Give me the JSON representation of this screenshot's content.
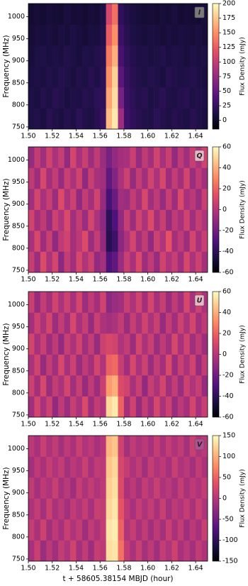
{
  "chart_data": [
    {
      "type": "heatmap",
      "label": "I",
      "colorbar_label": "Flux Density (mJy)",
      "ylabel": "Frequency (MHz)",
      "colormap": "magma",
      "label_box": "#7a7a7a",
      "xlim": [
        1.5,
        1.65
      ],
      "ylim": [
        745,
        1030
      ],
      "clim": [
        -15,
        200
      ],
      "xticks": [
        {
          "value": 1.5,
          "label": "1.50"
        },
        1.52,
        1.54,
        1.56,
        1.58,
        {
          "value": 1.6,
          "label": "1.60"
        },
        1.62,
        1.64
      ],
      "yticks": [
        750,
        800,
        850,
        900,
        950,
        1000
      ],
      "cticks": [
        0,
        25,
        50,
        75,
        100,
        125,
        150,
        175,
        200
      ],
      "x": [
        1.5025,
        1.5075,
        1.5125,
        1.5175,
        1.5225,
        1.5275,
        1.5325,
        1.5375,
        1.5425,
        1.5475,
        1.5525,
        1.5575,
        1.5625,
        1.5675,
        1.5725,
        1.5775,
        1.5825,
        1.5875,
        1.5925,
        1.5975,
        1.6025,
        1.6075,
        1.6125,
        1.6175,
        1.6225,
        1.6275,
        1.6325,
        1.6375,
        1.6425,
        1.6475
      ],
      "y": [
        768.75,
        816.25,
        863.75,
        911.25,
        958.75,
        1006.25
      ],
      "z": [
        [
          12,
          15,
          10,
          18,
          14,
          11,
          16,
          13,
          20,
          15,
          12,
          18,
          25,
          170,
          190,
          80,
          30,
          22,
          18,
          15,
          14,
          20,
          16,
          13,
          17,
          15,
          12,
          18,
          14,
          11
        ],
        [
          14,
          10,
          16,
          12,
          18,
          15,
          11,
          14,
          13,
          17,
          15,
          20,
          22,
          160,
          185,
          60,
          28,
          20,
          16,
          18,
          12,
          15,
          19,
          14,
          13,
          16,
          18,
          12,
          15,
          13
        ],
        [
          10,
          13,
          11,
          15,
          12,
          16,
          14,
          10,
          15,
          12,
          18,
          14,
          20,
          150,
          180,
          45,
          25,
          18,
          15,
          12,
          16,
          14,
          11,
          17,
          15,
          12,
          14,
          16,
          13,
          10
        ],
        [
          8,
          12,
          14,
          10,
          13,
          11,
          15,
          12,
          9,
          14,
          12,
          16,
          18,
          140,
          165,
          35,
          22,
          16,
          13,
          14,
          11,
          12,
          15,
          10,
          14,
          12,
          9,
          13,
          11,
          12
        ],
        [
          6,
          9,
          8,
          11,
          7,
          10,
          8,
          12,
          9,
          7,
          11,
          9,
          15,
          125,
          150,
          28,
          18,
          12,
          10,
          8,
          11,
          9,
          7,
          10,
          8,
          11,
          9,
          8,
          10,
          7
        ],
        [
          4,
          7,
          5,
          8,
          6,
          5,
          9,
          6,
          7,
          5,
          8,
          6,
          12,
          110,
          135,
          22,
          15,
          10,
          8,
          6,
          7,
          5,
          8,
          6,
          9,
          5,
          7,
          6,
          5,
          8
        ]
      ]
    },
    {
      "type": "heatmap",
      "label": "Q",
      "colorbar_label": "Flux Density (mJy)",
      "ylabel": "Frequency (MHz)",
      "colormap": "magma",
      "label_box": "#e8b8c8",
      "xlim": [
        1.5,
        1.65
      ],
      "ylim": [
        745,
        1030
      ],
      "clim": [
        -60,
        60
      ],
      "xticks": [
        {
          "value": 1.5,
          "label": "1.50"
        },
        1.52,
        1.54,
        1.56,
        1.58,
        {
          "value": 1.6,
          "label": "1.60"
        },
        1.62,
        1.64
      ],
      "yticks": [
        750,
        800,
        850,
        900,
        950,
        1000
      ],
      "cticks": [
        -60,
        -40,
        -20,
        0,
        20,
        40,
        60
      ],
      "x": [
        1.5025,
        1.5075,
        1.5125,
        1.5175,
        1.5225,
        1.5275,
        1.5325,
        1.5375,
        1.5425,
        1.5475,
        1.5525,
        1.5575,
        1.5625,
        1.5675,
        1.5725,
        1.5775,
        1.5825,
        1.5875,
        1.5925,
        1.5975,
        1.6025,
        1.6075,
        1.6125,
        1.6175,
        1.6225,
        1.6275,
        1.6325,
        1.6375,
        1.6425,
        1.6475
      ],
      "y": [
        768.75,
        816.25,
        863.75,
        911.25,
        958.75,
        1006.25
      ],
      "z": [
        [
          5,
          -8,
          12,
          -3,
          9,
          -12,
          4,
          -6,
          10,
          -2,
          7,
          -10,
          -5,
          -30,
          -25,
          -8,
          6,
          -4,
          11,
          -7,
          3,
          -9,
          8,
          -2,
          5,
          -6,
          10,
          -3,
          7,
          -5
        ],
        [
          -4,
          10,
          -7,
          6,
          -11,
          3,
          8,
          -5,
          2,
          12,
          -8,
          4,
          -10,
          -42,
          -35,
          -12,
          -3,
          9,
          -6,
          4,
          -10,
          7,
          -2,
          15,
          -5,
          3,
          -7,
          9,
          -4,
          6
        ],
        [
          8,
          -5,
          3,
          -9,
          7,
          -2,
          11,
          -6,
          4,
          -8,
          9,
          -3,
          -12,
          -40,
          -30,
          -10,
          5,
          -7,
          8,
          -3,
          12,
          -5,
          6,
          -9,
          3,
          -4,
          8,
          -6,
          5,
          -2
        ],
        [
          -6,
          9,
          -4,
          5,
          -8,
          12,
          -3,
          7,
          -10,
          4,
          -5,
          8,
          -9,
          -32,
          -22,
          -6,
          -8,
          4,
          -5,
          10,
          -6,
          3,
          -9,
          5,
          -7,
          11,
          -4,
          2,
          -8,
          6
        ],
        [
          3,
          -7,
          10,
          -5,
          4,
          -9,
          6,
          -3,
          8,
          -11,
          5,
          -4,
          -6,
          -25,
          -15,
          -3,
          7,
          -9,
          4,
          -6,
          8,
          -3,
          10,
          -7,
          4,
          -5,
          9,
          -8,
          3,
          -6
        ],
        [
          -9,
          4,
          -6,
          8,
          -3,
          5,
          -10,
          9,
          -4,
          6,
          -7,
          3,
          -8,
          -18,
          -10,
          -5,
          -4,
          6,
          -9,
          3,
          -5,
          8,
          -4,
          6,
          -10,
          3,
          -6,
          5,
          -3,
          8
        ]
      ]
    },
    {
      "type": "heatmap",
      "label": "U",
      "colorbar_label": "Flux Density (mJy)",
      "ylabel": "Frequency (MHz)",
      "colormap": "magma",
      "label_box": "#e8b8c8",
      "xlim": [
        1.5,
        1.65
      ],
      "ylim": [
        745,
        1030
      ],
      "clim": [
        -60,
        60
      ],
      "xticks": [
        {
          "value": 1.5,
          "label": "1.50"
        },
        1.52,
        1.54,
        1.56,
        1.58,
        {
          "value": 1.6,
          "label": "1.60"
        },
        1.62,
        1.64
      ],
      "yticks": [
        750,
        800,
        850,
        900,
        950,
        1000
      ],
      "cticks": [
        -60,
        -40,
        -20,
        0,
        20,
        40,
        60
      ],
      "x": [
        1.5025,
        1.5075,
        1.5125,
        1.5175,
        1.5225,
        1.5275,
        1.5325,
        1.5375,
        1.5425,
        1.5475,
        1.5525,
        1.5575,
        1.5625,
        1.5675,
        1.5725,
        1.5775,
        1.5825,
        1.5875,
        1.5925,
        1.5975,
        1.6025,
        1.6075,
        1.6125,
        1.6175,
        1.6225,
        1.6275,
        1.6325,
        1.6375,
        1.6425,
        1.6475
      ],
      "y": [
        768.75,
        816.25,
        863.75,
        911.25,
        958.75,
        1006.25
      ],
      "z": [
        [
          -6,
          9,
          -4,
          7,
          -10,
          3,
          -8,
          5,
          -3,
          11,
          -7,
          4,
          -2,
          50,
          55,
          20,
          -5,
          8,
          -9,
          4,
          -6,
          10,
          -3,
          7,
          -8,
          2,
          -5,
          9,
          -4,
          6
        ],
        [
          7,
          -5,
          10,
          -8,
          4,
          -3,
          9,
          -6,
          5,
          -9,
          3,
          -7,
          6,
          35,
          40,
          12,
          8,
          -4,
          6,
          -10,
          5,
          -3,
          9,
          -6,
          4,
          -8,
          7,
          -2,
          5,
          -9
        ],
        [
          -3,
          8,
          -9,
          4,
          -6,
          10,
          -4,
          7,
          -8,
          3,
          -5,
          9,
          -2,
          20,
          22,
          5,
          -6,
          10,
          -3,
          7,
          -8,
          4,
          -5,
          11,
          -7,
          6,
          -3,
          8,
          -9,
          4
        ],
        [
          9,
          -4,
          6,
          -7,
          3,
          -10,
          5,
          -3,
          8,
          -6,
          4,
          -9,
          7,
          10,
          8,
          -2,
          4,
          -7,
          9,
          -3,
          6,
          -8,
          3,
          -5,
          10,
          -4,
          8,
          -6,
          3,
          -7
        ],
        [
          -5,
          7,
          -3,
          9,
          -8,
          4,
          -6,
          10,
          -4,
          5,
          -9,
          6,
          -3,
          -5,
          -3,
          4,
          -8,
          5,
          -4,
          8,
          -3,
          6,
          -9,
          4,
          -6,
          7,
          -3,
          9,
          -5,
          3
        ],
        [
          6,
          -9,
          4,
          -5,
          8,
          -3,
          7,
          -4,
          9,
          -7,
          3,
          -5,
          8,
          -12,
          -8,
          -6,
          6,
          -3,
          8,
          -5,
          9,
          -4,
          5,
          -8,
          3,
          -6,
          10,
          -4,
          7,
          -3
        ]
      ]
    },
    {
      "type": "heatmap",
      "label": "V",
      "colorbar_label": "Flux Density (mJy)",
      "ylabel": "Frequency (MHz)",
      "xlabel": "t + 58605.38154 MBJD (hour)",
      "colormap": "magma",
      "label_box": "#b05090",
      "xlim": [
        1.5,
        1.65
      ],
      "ylim": [
        745,
        1030
      ],
      "clim": [
        -150,
        150
      ],
      "xticks": [
        {
          "value": 1.5,
          "label": "1.50"
        },
        1.52,
        1.54,
        1.56,
        1.58,
        {
          "value": 1.6,
          "label": "1.60"
        },
        1.62,
        1.64
      ],
      "yticks": [
        750,
        800,
        850,
        900,
        950,
        1000
      ],
      "cticks": [
        -150,
        -100,
        -50,
        0,
        50,
        100,
        150
      ],
      "x": [
        1.5025,
        1.5075,
        1.5125,
        1.5175,
        1.5225,
        1.5275,
        1.5325,
        1.5375,
        1.5425,
        1.5475,
        1.5525,
        1.5575,
        1.5625,
        1.5675,
        1.5725,
        1.5775,
        1.5825,
        1.5875,
        1.5925,
        1.5975,
        1.6025,
        1.6075,
        1.6125,
        1.6175,
        1.6225,
        1.6275,
        1.6325,
        1.6375,
        1.6425,
        1.6475
      ],
      "y": [
        768.75,
        816.25,
        863.75,
        911.25,
        958.75,
        1006.25
      ],
      "z": [
        [
          -10,
          15,
          -20,
          5,
          -15,
          10,
          -5,
          20,
          -12,
          8,
          -18,
          12,
          5,
          130,
          135,
          60,
          10,
          -8,
          15,
          -12,
          6,
          -15,
          10,
          -5,
          18,
          -10,
          4,
          -14,
          8,
          -6
        ],
        [
          12,
          -8,
          18,
          -14,
          6,
          -10,
          15,
          -4,
          10,
          -16,
          8,
          -6,
          10,
          135,
          140,
          50,
          -5,
          12,
          -10,
          8,
          -14,
          6,
          -12,
          15,
          -8,
          10,
          -16,
          5,
          -10,
          14
        ],
        [
          -6,
          10,
          -12,
          16,
          -8,
          5,
          -14,
          9,
          -5,
          12,
          -10,
          15,
          8,
          125,
          135,
          40,
          6,
          -10,
          12,
          -6,
          10,
          -8,
          14,
          -12,
          6,
          -4,
          12,
          -8,
          15,
          -5
        ],
        [
          8,
          -12,
          6,
          -5,
          14,
          -10,
          4,
          -16,
          12,
          -6,
          10,
          -4,
          6,
          120,
          130,
          30,
          -8,
          6,
          -12,
          10,
          -5,
          14,
          -6,
          4,
          -10,
          12,
          -8,
          6,
          -4,
          10
        ],
        [
          -14,
          6,
          -8,
          12,
          -4,
          10,
          -12,
          5,
          -6,
          14,
          -10,
          8,
          4,
          115,
          125,
          25,
          10,
          -6,
          8,
          -14,
          12,
          -4,
          6,
          -10,
          14,
          -6,
          4,
          -12,
          8,
          -8
        ],
        [
          5,
          -10,
          14,
          -6,
          8,
          -12,
          6,
          -8,
          15,
          -4,
          6,
          -10,
          2,
          105,
          115,
          20,
          -12,
          8,
          -6,
          5,
          -10,
          12,
          -8,
          10,
          -4,
          8,
          -12,
          14,
          -6,
          4
        ]
      ]
    }
  ]
}
